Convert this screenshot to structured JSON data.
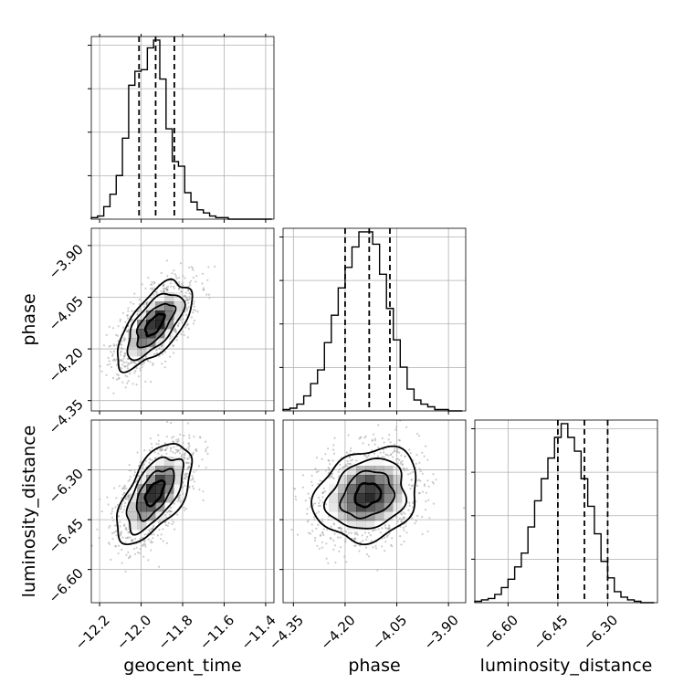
{
  "chart_data": {
    "type": "corner",
    "parameters": [
      "geocent_time",
      "phase",
      "luminosity_distance"
    ],
    "grid": true,
    "colors": {
      "contour": "#000000",
      "hist": "#000000",
      "grid": "#b0b0b0",
      "density": "#000000"
    },
    "axis_ranges": {
      "geocent_time": [
        -12.24,
        -11.36
      ],
      "phase": [
        -4.38,
        -3.85
      ],
      "luminosity_distance": [
        -6.7,
        -6.15
      ]
    },
    "ticks": {
      "geocent_time": {
        "values": [
          -12.2,
          -12.0,
          -11.8,
          -11.6,
          -11.4
        ],
        "labels": [
          "−12.2",
          "−12.0",
          "−11.8",
          "−11.6",
          "−11.4"
        ]
      },
      "phase": {
        "values": [
          -4.35,
          -4.2,
          -4.05,
          -3.9
        ],
        "labels": [
          "−4.35",
          "−4.20",
          "−4.05",
          "−3.90"
        ]
      },
      "luminosity_distance": {
        "values": [
          -6.6,
          -6.45,
          -6.3
        ],
        "labels": [
          "−6.60",
          "−6.45",
          "−6.30"
        ]
      }
    },
    "marginals": [
      {
        "parameter": "geocent_time",
        "bin_edges": [
          -12.24,
          -12.21,
          -12.18,
          -12.15,
          -12.12,
          -12.09,
          -12.06,
          -12.03,
          -12.0,
          -11.97,
          -11.94,
          -11.91,
          -11.88,
          -11.85,
          -11.82,
          -11.79,
          -11.76,
          -11.73,
          -11.7,
          -11.67,
          -11.64,
          -11.61,
          -11.58,
          -11.55,
          -11.52,
          -11.49,
          -11.46,
          -11.43,
          -11.4,
          -11.37
        ],
        "counts": [
          1,
          2,
          8,
          16,
          28,
          52,
          86,
          95,
          96,
          110,
          115,
          90,
          58,
          37,
          34,
          17,
          11,
          6,
          4,
          2,
          1,
          1,
          0,
          0,
          0,
          0,
          0,
          0,
          0
        ],
        "quantiles": [
          -12.01,
          -11.93,
          -11.84
        ]
      },
      {
        "parameter": "phase",
        "bin_edges": [
          -4.38,
          -4.36,
          -4.34,
          -4.32,
          -4.3,
          -4.28,
          -4.26,
          -4.24,
          -4.22,
          -4.2,
          -4.18,
          -4.16,
          -4.14,
          -4.12,
          -4.1,
          -4.08,
          -4.06,
          -4.04,
          -4.02,
          -4.0,
          -3.98,
          -3.96,
          -3.94,
          -3.92,
          -3.9,
          -3.88,
          -3.86
        ],
        "counts": [
          1,
          2,
          5,
          11,
          20,
          30,
          50,
          70,
          90,
          105,
          120,
          131,
          131,
          122,
          100,
          75,
          52,
          32,
          16,
          8,
          5,
          3,
          1,
          1,
          0,
          0
        ],
        "quantiles": [
          -4.2,
          -4.13,
          -4.07
        ]
      },
      {
        "parameter": "luminosity_distance",
        "bin_edges": [
          -6.7,
          -6.68,
          -6.66,
          -6.64,
          -6.62,
          -6.6,
          -6.58,
          -6.56,
          -6.54,
          -6.52,
          -6.5,
          -6.48,
          -6.46,
          -6.44,
          -6.42,
          -6.4,
          -6.38,
          -6.36,
          -6.34,
          -6.32,
          -6.3,
          -6.28,
          -6.26,
          -6.24,
          -6.22,
          -6.2,
          -6.18,
          -6.16
        ],
        "counts": [
          1,
          2,
          3,
          6,
          11,
          17,
          26,
          36,
          55,
          74,
          90,
          105,
          120,
          130,
          120,
          110,
          90,
          70,
          50,
          30,
          18,
          8,
          4,
          2,
          1,
          0,
          0
        ],
        "quantiles": [
          -6.45,
          -6.37,
          -6.3
        ]
      }
    ],
    "pairs": [
      {
        "x": "geocent_time",
        "y": "phase",
        "center": [
          -11.935,
          -4.13
        ],
        "sigma": [
          0.09,
          0.063
        ],
        "rho": 0.65
      },
      {
        "x": "geocent_time",
        "y": "luminosity_distance",
        "center": [
          -11.935,
          -6.37
        ],
        "sigma": [
          0.09,
          0.075
        ],
        "rho": 0.6
      },
      {
        "x": "phase",
        "y": "luminosity_distance",
        "center": [
          -4.135,
          -6.375
        ],
        "sigma": [
          0.075,
          0.07
        ],
        "rho": 0.2
      }
    ],
    "contour_levels_sigma": [
      0.5,
      1.0,
      1.5,
      2.0
    ]
  }
}
